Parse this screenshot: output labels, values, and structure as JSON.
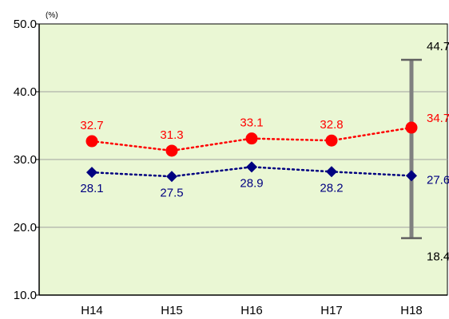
{
  "chart_data": {
    "type": "line",
    "unit": "(%)",
    "categories": [
      "H14",
      "H15",
      "H16",
      "H17",
      "H18"
    ],
    "ylim": [
      10.0,
      50.0
    ],
    "yticks": [
      "50.0",
      "40.0",
      "30.0",
      "20.0",
      "10.0"
    ],
    "ytick_values": [
      50,
      40,
      30,
      20,
      10
    ],
    "grid": true,
    "series": [
      {
        "color": "#ff0000",
        "marker": "circle",
        "line_style": "dotted",
        "values": [
          32.7,
          31.3,
          33.1,
          32.8,
          34.7
        ],
        "labels": [
          "32.7",
          "31.3",
          "33.1",
          "32.8",
          "34.7"
        ]
      },
      {
        "color": "#000080",
        "marker": "diamond",
        "line_style": "dotted",
        "values": [
          28.1,
          27.5,
          28.9,
          28.2,
          27.6
        ],
        "labels": [
          "28.1",
          "27.5",
          "28.9",
          "28.2",
          "27.6"
        ]
      }
    ],
    "range_bar": {
      "category": "H18",
      "color": "#808080",
      "max": 44.7,
      "min": 18.4,
      "max_label": "44.7",
      "min_label": "18.4"
    },
    "plot_background": "#eaf7d4"
  }
}
